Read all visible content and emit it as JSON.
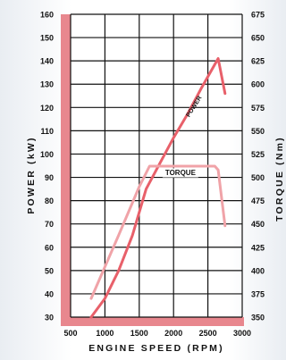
{
  "chart_data": {
    "type": "line",
    "xlabel": "ENGINE SPEED (RPM)",
    "ylabel_left": "POWER (kW)",
    "ylabel_right": "TORQUE (Nm)",
    "xlim": [
      500,
      3000
    ],
    "ylim_left": [
      30,
      160
    ],
    "ylim_right": [
      350,
      675
    ],
    "x_ticks": [
      500,
      1000,
      1500,
      2000,
      2500,
      3000
    ],
    "y_ticks_left": [
      30,
      40,
      50,
      60,
      70,
      80,
      90,
      100,
      110,
      120,
      130,
      140,
      150,
      160
    ],
    "y_ticks_right": [
      350,
      375,
      400,
      425,
      450,
      475,
      500,
      525,
      550,
      575,
      600,
      625,
      650,
      675
    ],
    "grid": true,
    "series": [
      {
        "name": "POWER",
        "axis": "left",
        "color": "#e8606a",
        "x": [
          800,
          1000,
          1200,
          1400,
          1600,
          1800,
          2000,
          2200,
          2400,
          2650,
          2750
        ],
        "y": [
          30,
          38,
          50,
          65,
          85,
          96,
          107,
          117,
          128,
          141,
          126
        ]
      },
      {
        "name": "TORQUE",
        "axis": "right",
        "color": "#f0a3a8",
        "x": [
          800,
          1200,
          1500,
          1650,
          2000,
          2500,
          2600,
          2650,
          2750
        ],
        "y": [
          370,
          438,
          490,
          512,
          512,
          512,
          512,
          508,
          448
        ]
      }
    ],
    "accent": {
      "axis_band": "#e8878e",
      "grid": "#111111"
    }
  }
}
